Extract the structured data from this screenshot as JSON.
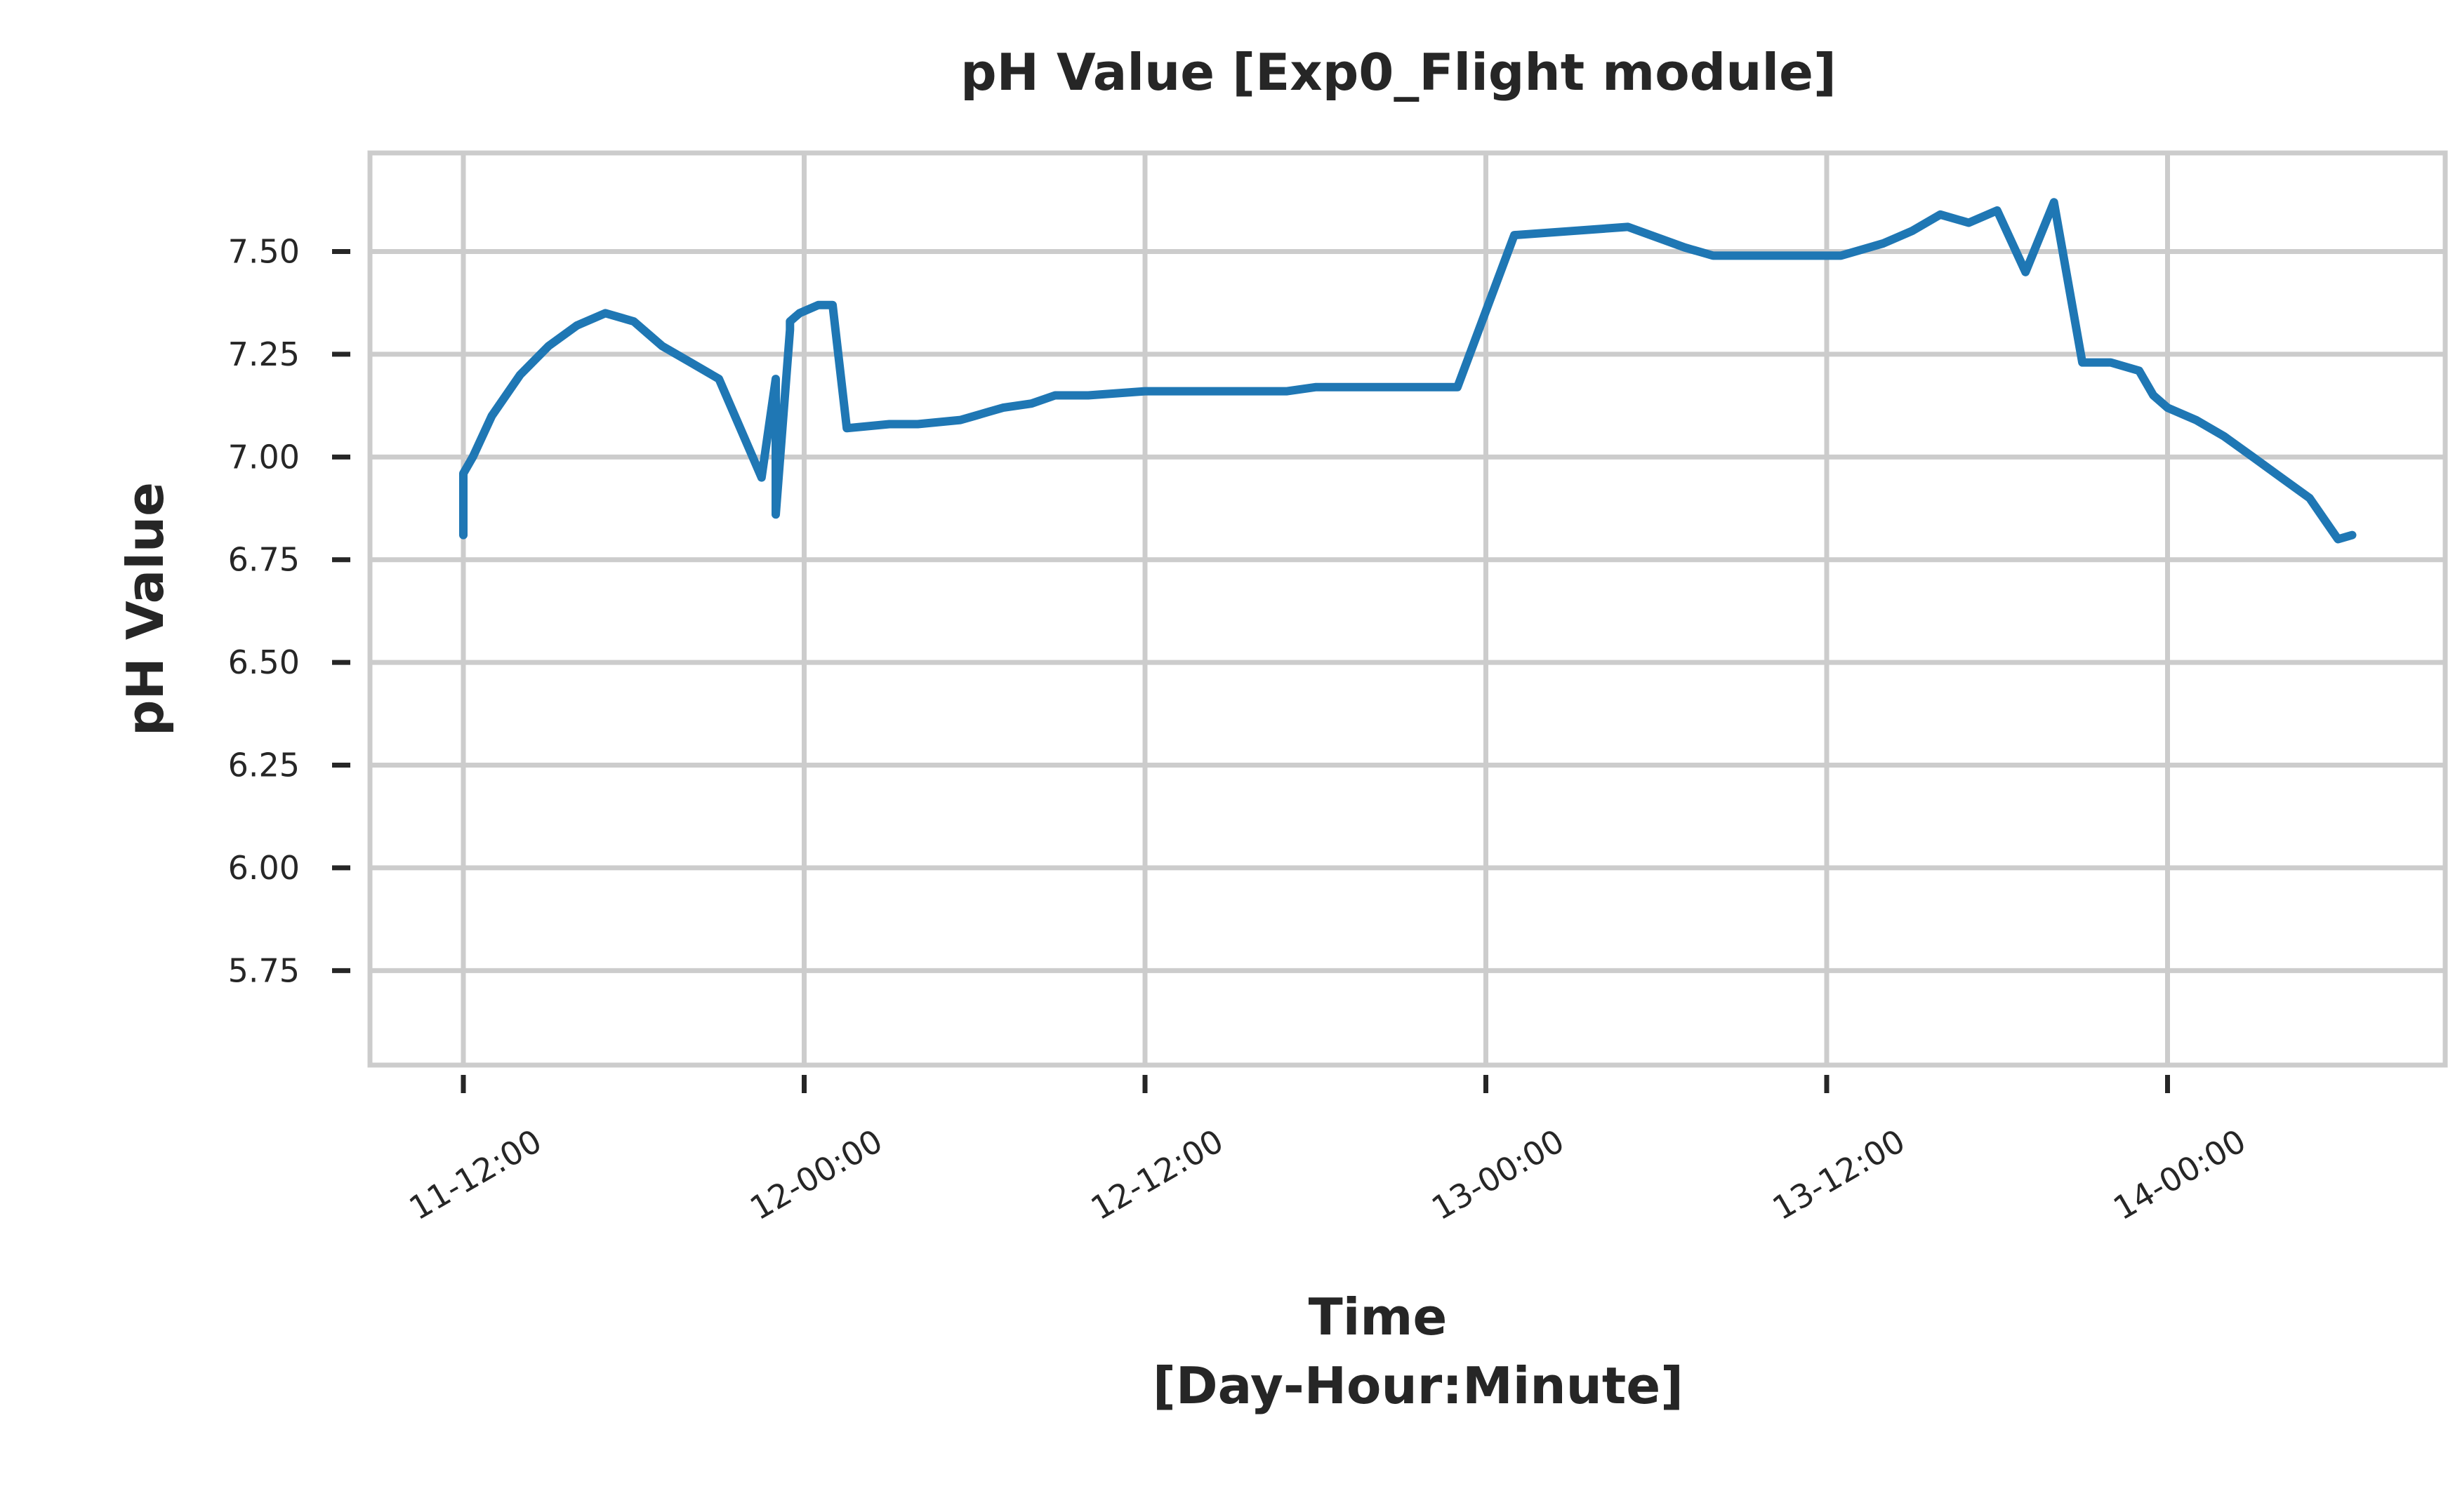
{
  "chart_data": {
    "type": "line",
    "title": "pH Value [Exp0_Flight module]",
    "xlabel_lines": [
      "Time",
      "[Day-Hour:Minute]"
    ],
    "ylabel": "pH Value",
    "x_ticks": [
      "11-12:00",
      "12-00:00",
      "12-12:00",
      "13-00:00",
      "13-12:00",
      "14-00:00"
    ],
    "y_ticks": [
      "5.75",
      "6.00",
      "6.25",
      "6.50",
      "6.75",
      "7.00",
      "7.25",
      "7.50"
    ],
    "ylim": [
      5.52,
      7.74
    ],
    "grid": true,
    "colors": {
      "series": "#1f77b4",
      "grid": "#cccccc",
      "text": "#262626"
    },
    "series": [
      {
        "x": [
          "11-12:00",
          "11-12:00",
          "11-12:20",
          "11-13:00",
          "11-14:00",
          "11-15:00",
          "11-16:00",
          "11-17:00",
          "11-18:00",
          "11-18:30",
          "11-19:00",
          "11-20:00",
          "11-21:00",
          "11-22:30",
          "11-23:00",
          "11-23:00",
          "11-23:30",
          "11-23:30",
          "11-23:40",
          "11-23:50",
          "12-00:30",
          "12-01:00",
          "12-01:30",
          "12-03:00",
          "12-04:00",
          "12-05:30",
          "12-06:00",
          "12-06:30",
          "12-07:00",
          "12-08:00",
          "12-08:50",
          "12-09:00",
          "12-10:00",
          "12-12:00",
          "12-14:00",
          "12-16:00",
          "12-17:00",
          "12-18:00",
          "12-20:00",
          "12-21:00",
          "12-23:00",
          "13-01:00",
          "13-03:00",
          "13-05:00",
          "13-07:00",
          "13-08:00",
          "13-09:00",
          "13-10:00",
          "13-11:00",
          "13-12:00",
          "13-12:30",
          "13-13:00",
          "13-14:00",
          "13-15:00",
          "13-16:00",
          "13-17:00",
          "13-18:00",
          "13-19:00",
          "13-20:00",
          "13-21:00",
          "13-22:00",
          "13-23:00",
          "13-23:30",
          "14-00:00",
          "14-01:00",
          "14-02:00",
          "14-03:00",
          "14-04:00",
          "14-05:00",
          "14-05:30",
          "14-06:00",
          "14-06:30"
        ],
        "values": [
          6.81,
          6.96,
          7.0,
          7.1,
          7.2,
          7.27,
          7.32,
          7.35,
          7.33,
          7.3,
          7.27,
          7.23,
          7.19,
          6.95,
          7.19,
          6.86,
          7.31,
          7.33,
          7.34,
          7.35,
          7.37,
          7.37,
          7.07,
          7.08,
          7.08,
          7.09,
          7.1,
          7.11,
          7.12,
          7.13,
          7.15,
          7.15,
          7.15,
          7.16,
          7.16,
          7.16,
          7.16,
          7.17,
          7.17,
          7.17,
          7.17,
          7.54,
          7.55,
          7.56,
          7.51,
          7.49,
          7.49,
          7.49,
          7.49,
          7.49,
          7.49,
          7.5,
          7.52,
          7.55,
          7.59,
          7.57,
          7.6,
          7.45,
          7.62,
          7.23,
          7.23,
          7.21,
          7.15,
          7.12,
          7.09,
          7.05,
          7.0,
          6.95,
          6.9,
          6.85,
          6.8,
          6.81
        ]
      }
    ]
  }
}
